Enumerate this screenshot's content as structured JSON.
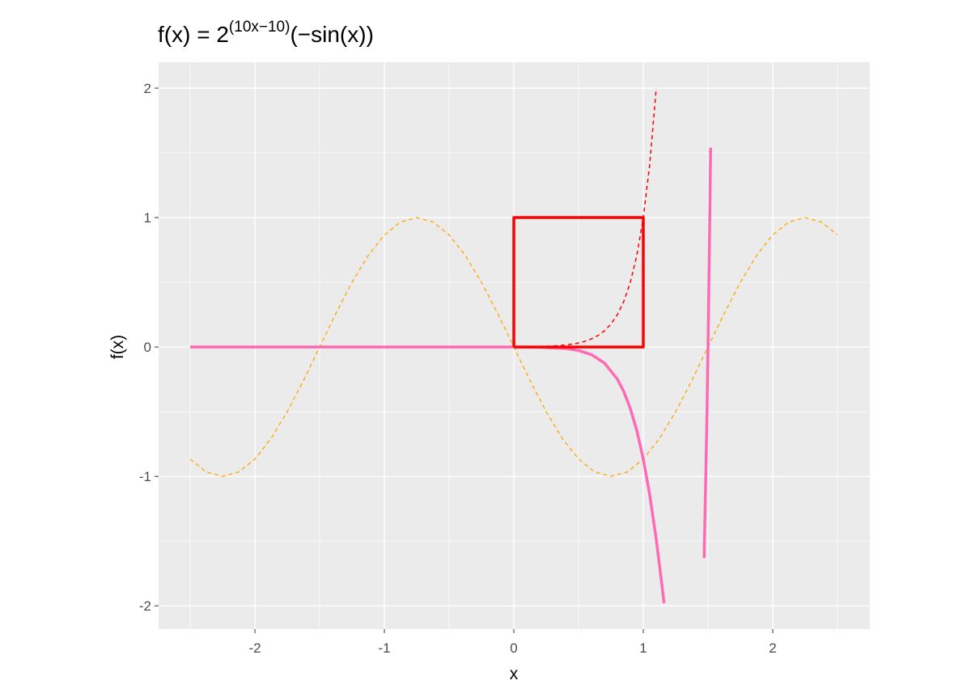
{
  "chart_data": {
    "type": "line",
    "title": {
      "base": "f(x) = 2",
      "superscript": "(10x−10)",
      "tail": "(−sin(x))"
    },
    "x_label": "x",
    "y_label": "f(x)",
    "xlim": [
      -2.744,
      2.75
    ],
    "ylim": [
      -2.18,
      2.2
    ],
    "xticks": [
      -2,
      -1,
      0,
      1,
      2
    ],
    "yticks": [
      -2,
      -1,
      0,
      1,
      2
    ],
    "xminor": [
      -2.5,
      -1.5,
      -0.5,
      0.5,
      1.5,
      2.5
    ],
    "yminor": [
      -1.5,
      -0.5,
      0.5,
      1.5
    ],
    "grid": true,
    "panel_color": "#ebebeb",
    "series": [
      {
        "color": "#ffa500",
        "style": "dashed",
        "linewidth": 1.3,
        "x": [
          -2.5,
          -2.375,
          -2.25,
          -2.125,
          -2,
          -1.875,
          -1.75,
          -1.625,
          -1.5,
          -1.375,
          -1.25,
          -1.125,
          -1,
          -0.875,
          -0.75,
          -0.625,
          -0.5,
          -0.375,
          -0.25,
          -0.125,
          0,
          0.125,
          0.25,
          0.375,
          0.5,
          0.625,
          0.75,
          0.875,
          1,
          1.125,
          1.25,
          1.375,
          1.5,
          1.625,
          1.75,
          1.875,
          2,
          2.125,
          2.25,
          2.375,
          2.5
        ],
        "values": [
          -0.866,
          -0.966,
          -1,
          -0.966,
          -0.866,
          -0.707,
          -0.5,
          -0.259,
          0,
          0.259,
          0.5,
          0.707,
          0.866,
          0.966,
          1,
          0.966,
          0.866,
          0.707,
          0.5,
          0.259,
          0,
          -0.259,
          -0.5,
          -0.707,
          -0.866,
          -0.966,
          -1,
          -0.966,
          -0.866,
          -0.707,
          -0.5,
          -0.259,
          0,
          0.259,
          0.5,
          0.707,
          0.866,
          0.966,
          1,
          0.966,
          0.866
        ]
      },
      {
        "color": "#ff0000",
        "style": "dashed",
        "linewidth": 1.5,
        "x": [
          0.25,
          0.3,
          0.35,
          0.4,
          0.45,
          0.5,
          0.55,
          0.6,
          0.65,
          0.7,
          0.75,
          0.8,
          0.85,
          0.9,
          0.95,
          1.0,
          1.05,
          1.1
        ],
        "values": [
          0.0055,
          0.0078,
          0.011,
          0.0156,
          0.0221,
          0.03125,
          0.0442,
          0.0625,
          0.0884,
          0.125,
          0.177,
          0.25,
          0.354,
          0.5,
          0.707,
          1,
          1.414,
          2
        ]
      },
      {
        "color": "#ff69b4",
        "style": "solid",
        "linewidth": 3.5,
        "x": [
          -2.5,
          -2,
          -1.5,
          -1,
          -0.5,
          0,
          0.2,
          0.4,
          0.5,
          0.6,
          0.7,
          0.8,
          0.85,
          0.9,
          0.95,
          1.0,
          1.05,
          1.1,
          1.15,
          1.16,
          1.3,
          1.47,
          1.49,
          1.5,
          1.51,
          1.52
        ],
        "values": [
          0,
          0,
          0,
          0,
          0,
          0,
          -0.0016,
          -0.0116,
          -0.027,
          -0.059,
          -0.124,
          -0.249,
          -0.346,
          -0.476,
          -0.646,
          -0.866,
          -1.144,
          -1.486,
          -1.89,
          -1.98,
          null,
          -1.63,
          -0.625,
          0,
          0.717,
          1.54
        ]
      },
      {
        "color": "#ff0000",
        "style": "solid",
        "linewidth": 3.5,
        "x": [
          0,
          1,
          1,
          0,
          0
        ],
        "values": [
          0,
          0,
          1,
          1,
          0
        ]
      }
    ]
  }
}
